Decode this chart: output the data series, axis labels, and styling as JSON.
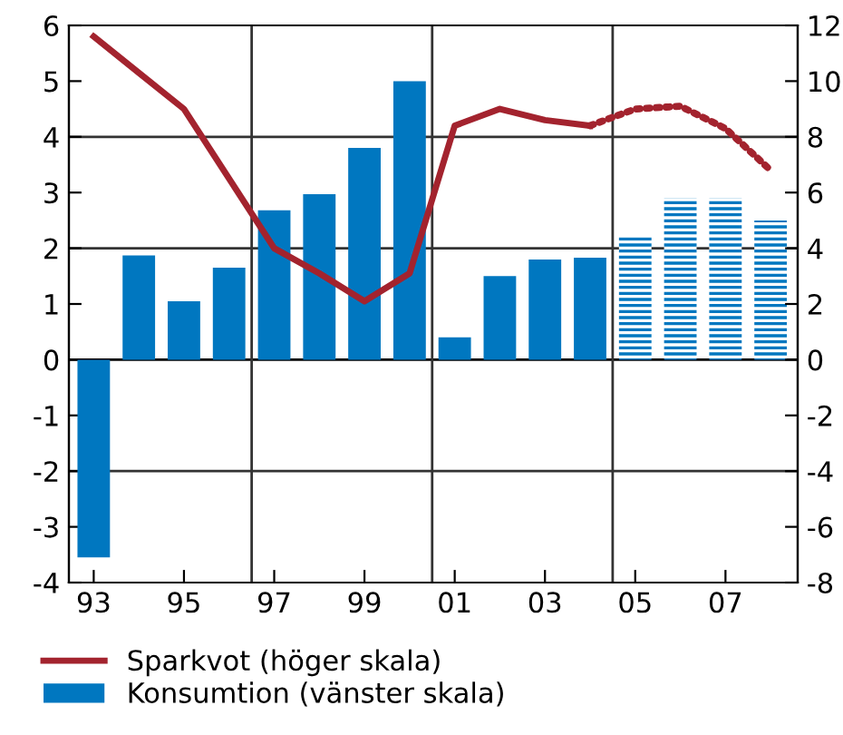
{
  "chart_data": {
    "type": "bar",
    "x": [
      1993,
      1994,
      1995,
      1996,
      1997,
      1998,
      1999,
      2000,
      2001,
      2002,
      2003,
      2004,
      2005,
      2006,
      2007,
      2008
    ],
    "xlim": [
      1992.45,
      2008.6
    ],
    "xticks": [
      {
        "value": 1993,
        "label": "93"
      },
      {
        "value": 1995,
        "label": "95"
      },
      {
        "value": 1997,
        "label": "97"
      },
      {
        "value": 1999,
        "label": "99"
      },
      {
        "value": 2001,
        "label": "01"
      },
      {
        "value": 2003,
        "label": "03"
      },
      {
        "value": 2005,
        "label": "05"
      },
      {
        "value": 2007,
        "label": "07"
      }
    ],
    "ylim": [
      -4,
      6
    ],
    "yticks": [
      -4,
      -3,
      -2,
      -1,
      0,
      1,
      2,
      3,
      4,
      5,
      6
    ],
    "y2lim": [
      -8,
      12
    ],
    "y2ticks": [
      -8,
      -6,
      -4,
      -2,
      0,
      2,
      4,
      6,
      8,
      10,
      12
    ],
    "series": [
      {
        "name": "Sparkvot (höger skala)",
        "type": "line",
        "axis": "y2",
        "color": "#a3232e",
        "line_style": "solid",
        "values": [
          11.6,
          10.3,
          9.0,
          6.5,
          4.0,
          3.1,
          2.1,
          3.1,
          8.4,
          9.0,
          8.6,
          8.4,
          null,
          null,
          null,
          null
        ]
      },
      {
        "type": "line",
        "axis": "y2",
        "color": "#a3232e",
        "line_style": "dotted",
        "values": [
          null,
          null,
          null,
          null,
          null,
          null,
          null,
          null,
          null,
          null,
          null,
          8.4,
          9.0,
          9.1,
          8.3,
          6.8
        ]
      },
      {
        "name": "Konsumtion (vänster skala)",
        "color": "#0077c0",
        "line_style": "solid",
        "values": [
          -3.55,
          1.87,
          1.05,
          1.65,
          2.68,
          2.97,
          3.8,
          5.0,
          0.4,
          1.5,
          1.8,
          1.83,
          null,
          null,
          null,
          null
        ]
      },
      {
        "color": "#0077c0",
        "line_style": "dotted",
        "values": [
          null,
          null,
          null,
          null,
          null,
          null,
          null,
          null,
          null,
          null,
          null,
          null,
          2.2,
          2.9,
          2.9,
          2.5
        ]
      }
    ],
    "ref_lines": [
      {
        "axis": "y",
        "value": -2,
        "color": "#333333"
      },
      {
        "axis": "y",
        "value": 0,
        "color": "#000000"
      },
      {
        "axis": "y",
        "value": 2,
        "color": "#333333"
      },
      {
        "axis": "y",
        "value": 4,
        "color": "#333333"
      },
      {
        "axis": "x",
        "value": 1996.5,
        "color": "#333333"
      },
      {
        "axis": "x",
        "value": 2000.5,
        "color": "#333333"
      },
      {
        "axis": "x",
        "value": 2004.5,
        "color": "#333333"
      }
    ],
    "grid": false,
    "legend": "bottom left"
  }
}
